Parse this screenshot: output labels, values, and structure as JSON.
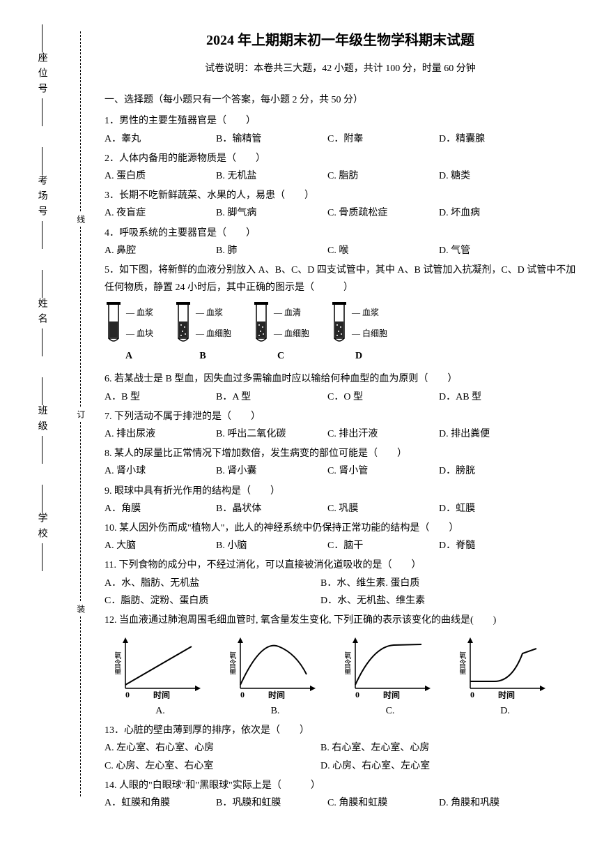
{
  "title": "2024 年上期期末初一年级生物学科期末试题",
  "subtitle": "试卷说明：本卷共三大题，42 小题，共计 100 分，时量 60 分钟",
  "sidebar": {
    "labels": [
      "座位号",
      "考场号",
      "姓名",
      "班级",
      "学校"
    ],
    "binding": [
      "线",
      "订",
      "装"
    ]
  },
  "section1": "一、选择题（每小题只有一个答案，每小题 2 分，共 50 分）",
  "questions": [
    {
      "stem": "1．男性的主要生殖器官是（　　）",
      "opts": [
        "A．睾丸",
        "B．输精管",
        "C．附睾",
        "D．精囊腺"
      ]
    },
    {
      "stem": "2．人体内备用的能源物质是（　　）",
      "opts": [
        "A. 蛋白质",
        "B. 无机盐",
        "C. 脂肪",
        "D. 糖类"
      ]
    },
    {
      "stem": "3．长期不吃新鲜蔬菜、水果的人，易患（　　）",
      "opts": [
        "A. 夜盲症",
        "B. 脚气病",
        "C. 骨质疏松症",
        "D. 坏血病"
      ]
    },
    {
      "stem": "4．呼吸系统的主要器官是（　　）",
      "opts": [
        "A. 鼻腔",
        "B. 肺",
        "C. 喉",
        "D. 气管"
      ]
    },
    {
      "stem": "5．如下图，将新鲜的血液分别放入 A、B、C、D 四支试管中，其中 A、B 试管加入抗凝剂，C、D 试管中不加任何物质，静置 24 小时后，其中正确的图示是（　　　）",
      "figure": "tubes",
      "tubes": [
        {
          "letter": "A",
          "top": "血浆",
          "bottom": "血块"
        },
        {
          "letter": "B",
          "top": "血浆",
          "bottom": "血细胞"
        },
        {
          "letter": "C",
          "top": "血清",
          "bottom": "血细胞"
        },
        {
          "letter": "D",
          "top": "血浆",
          "bottom": "白细胞"
        }
      ]
    },
    {
      "stem": "6. 若某战士是 B 型血，因失血过多需输血时应以输给何种血型的血为原则（　　）",
      "opts": [
        "A．B 型",
        "B．A 型",
        "C．O 型",
        "D．AB 型"
      ]
    },
    {
      "stem": "7. 下列活动不属于排泄的是（　　）",
      "opts": [
        "A. 排出尿液",
        "B. 呼出二氧化碳",
        "C. 排出汗液",
        "D. 排出粪便"
      ]
    },
    {
      "stem": "8. 某人的尿量比正常情况下增加数倍，发生病变的部位可能是（　　）",
      "opts": [
        "A. 肾小球",
        "B. 肾小囊",
        "C. 肾小管",
        "D．膀胱"
      ]
    },
    {
      "stem": "9. 眼球中具有折光作用的结构是（　　）",
      "opts": [
        "A．角膜",
        "B．晶状体",
        "C. 巩膜",
        "D．虹膜"
      ]
    },
    {
      "stem": "10. 某人因外伤而成\"植物人\"，此人的神经系统中仍保持正常功能的结构是（　　）",
      "opts": [
        "A. 大脑",
        "B. 小脑",
        "C．脑干",
        "D．脊髓"
      ]
    },
    {
      "stem": "11. 下列食物的成分中，不经过消化，可以直接被消化道吸收的是（　　）",
      "opts_wide": [
        "A．水、脂肪、无机盐",
        "B．水、维生素. 蛋白质",
        "C．脂肪、淀粉、蛋白质",
        "D．水、无机盐、维生素"
      ]
    },
    {
      "stem": "12. 当血液通过肺泡周围毛细血管时, 氧含量发生变化, 下列正确的表示该变化的曲线是(　　)",
      "figure": "graphs",
      "graph_opts": [
        "A.",
        "B.",
        "C.",
        "D."
      ],
      "ylabel": "氧含量",
      "xlabel": "时间"
    },
    {
      "stem": "13．心脏的壁由薄到厚的排序，依次是（　　）",
      "opts_wide": [
        "A. 左心室、右心室、心房",
        "B. 右心室、左心室、心房",
        "C. 心房、左心室、右心室",
        "D. 心房、右心室、左心室"
      ]
    },
    {
      "stem": "14. 人眼的\"白眼球\"和\"黑眼球\"实际上是（　　　）",
      "opts": [
        "A．虹膜和角膜",
        "B．巩膜和虹膜",
        "C. 角膜和虹膜",
        "D. 角膜和巩膜"
      ]
    }
  ],
  "colors": {
    "text": "#000000",
    "bg": "#ffffff",
    "line": "#000000"
  }
}
